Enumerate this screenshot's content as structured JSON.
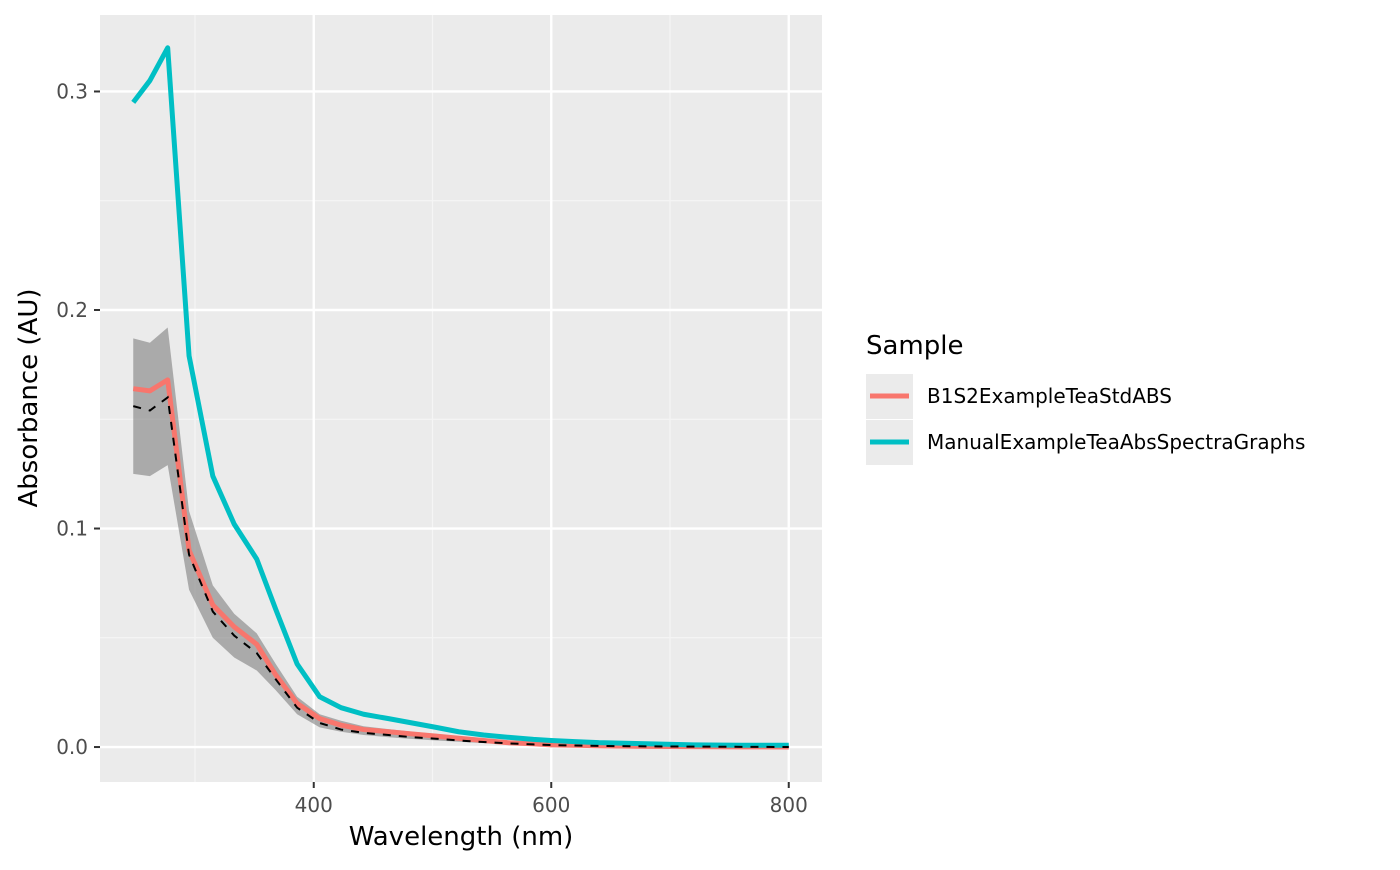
{
  "chart_data": {
    "type": "line",
    "xlabel": "Wavelength (nm)",
    "ylabel": "Absorbance (AU)",
    "xlim": [
      220,
      828
    ],
    "ylim": [
      -0.016,
      0.335
    ],
    "x_ticks": [
      400,
      600,
      800
    ],
    "y_ticks": [
      0.0,
      0.1,
      0.2,
      0.3
    ],
    "x_tick_labels": [
      "400",
      "600",
      "800"
    ],
    "y_tick_labels": [
      "0.0",
      "0.1",
      "0.2",
      "0.3"
    ],
    "grid": true,
    "legend": {
      "title": "Sample",
      "position": "right"
    },
    "series": [
      {
        "name": "B1S2ExampleTeaStdABS",
        "color": "#F8766D",
        "x": [
          248,
          262,
          277,
          295,
          315,
          333,
          352,
          368,
          386,
          405,
          423,
          442,
          463,
          483,
          503,
          522,
          543,
          563,
          585,
          600,
          620,
          640,
          680,
          720,
          760,
          800
        ],
        "y": [
          0.164,
          0.163,
          0.168,
          0.09,
          0.065,
          0.055,
          0.047,
          0.033,
          0.02,
          0.013,
          0.01,
          0.008,
          0.007,
          0.006,
          0.005,
          0.004,
          0.003,
          0.002,
          0.0015,
          0.001,
          0.0008,
          0.0006,
          0.0003,
          0.0002,
          0.0001,
          0.0
        ]
      },
      {
        "name": "ManualExampleTeaAbsSpectraGraphs",
        "color": "#00BFC4",
        "x": [
          248,
          262,
          277,
          295,
          315,
          333,
          352,
          368,
          386,
          405,
          423,
          442,
          463,
          483,
          503,
          522,
          543,
          563,
          585,
          600,
          620,
          640,
          680,
          720,
          760,
          800
        ],
        "y": [
          0.295,
          0.305,
          0.32,
          0.179,
          0.124,
          0.102,
          0.086,
          0.063,
          0.038,
          0.023,
          0.018,
          0.015,
          0.013,
          0.011,
          0.009,
          0.007,
          0.0055,
          0.0045,
          0.0035,
          0.003,
          0.0025,
          0.002,
          0.0015,
          0.001,
          0.0008,
          0.0008
        ]
      }
    ],
    "mean_line": {
      "color": "#000000",
      "style": "dashed",
      "x": [
        248,
        262,
        277,
        295,
        315,
        333,
        352,
        368,
        386,
        405,
        423,
        442,
        463,
        483,
        503,
        522,
        543,
        563,
        585,
        600,
        620,
        640,
        680,
        720,
        760,
        800
      ],
      "y": [
        0.156,
        0.154,
        0.16,
        0.088,
        0.062,
        0.051,
        0.043,
        0.031,
        0.018,
        0.011,
        0.008,
        0.0065,
        0.0055,
        0.0045,
        0.0038,
        0.003,
        0.0023,
        0.0017,
        0.0012,
        0.0009,
        0.0007,
        0.0005,
        0.0003,
        0.0002,
        0.0001,
        0.0
      ]
    },
    "ribbon": {
      "color": "#7f7f7f",
      "x": [
        248,
        262,
        277,
        295,
        315,
        333,
        352,
        368,
        386,
        405,
        423,
        442,
        463,
        483,
        503,
        522,
        543,
        563,
        585,
        600,
        620,
        640,
        680,
        720,
        760,
        800
      ],
      "ymin": [
        0.125,
        0.124,
        0.129,
        0.072,
        0.05,
        0.041,
        0.035,
        0.026,
        0.015,
        0.009,
        0.007,
        0.0055,
        0.0045,
        0.0037,
        0.003,
        0.0024,
        0.0018,
        0.0013,
        0.0009,
        0.0007,
        0.0005,
        0.0003,
        0.0002,
        0.0001,
        0.0,
        -0.0005
      ],
      "ymax": [
        0.187,
        0.185,
        0.192,
        0.108,
        0.074,
        0.061,
        0.052,
        0.038,
        0.023,
        0.015,
        0.012,
        0.0095,
        0.0082,
        0.007,
        0.006,
        0.0048,
        0.0037,
        0.0028,
        0.0021,
        0.0016,
        0.0012,
        0.0009,
        0.0005,
        0.0003,
        0.0002,
        0.0005
      ]
    }
  },
  "colors": {
    "panel_background": "#EBEBEB",
    "grid_major": "#FFFFFF",
    "grid_minor": "#F5F5F5"
  }
}
